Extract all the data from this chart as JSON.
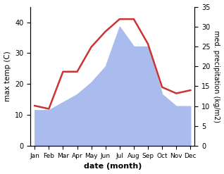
{
  "months": [
    "Jan",
    "Feb",
    "Mar",
    "Apr",
    "May",
    "Jun",
    "Jul",
    "Aug",
    "Sep",
    "Oct",
    "Nov",
    "Dec"
  ],
  "temp": [
    13,
    12,
    24,
    24,
    32,
    37,
    41,
    41,
    33,
    19,
    17,
    18
  ],
  "precip": [
    9,
    9,
    11,
    13,
    16,
    20,
    30,
    25,
    25,
    13,
    10,
    10
  ],
  "temp_color": "#cc3333",
  "precip_color": "#aabbee",
  "left_label": "max temp (C)",
  "right_label": "med. precipitation (kg/m2)",
  "xlabel": "date (month)",
  "ylim_left": [
    0,
    45
  ],
  "ylim_right": [
    0,
    35
  ],
  "yticks_left": [
    0,
    10,
    20,
    30,
    40
  ],
  "yticks_right": [
    0,
    5,
    10,
    15,
    20,
    25,
    30,
    35
  ],
  "bg_color": "#ffffff",
  "line_width": 1.8
}
